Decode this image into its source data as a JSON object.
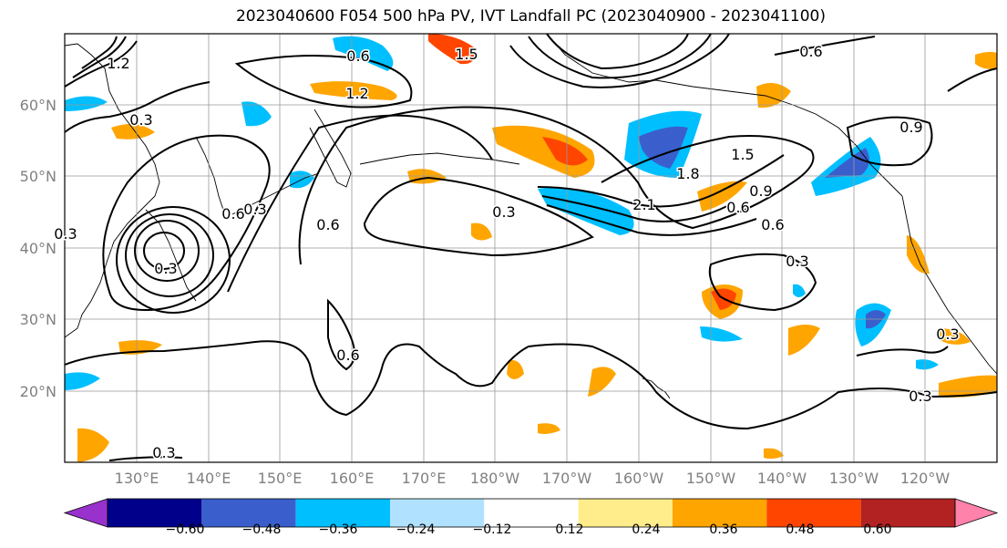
{
  "title": "2023040600 F054 500 hPa PV, IVT Landfall PC (2023040900 - 2023041100)",
  "lat_labels": [
    "60°N",
    "50°N",
    "40°N",
    "30°N",
    "20°N"
  ],
  "lon_labels": [
    "130°E",
    "140°E",
    "150°E",
    "160°E",
    "170°E",
    "180°W",
    "170°W",
    "160°W",
    "150°W",
    "140°W",
    "130°W",
    "120°W"
  ],
  "contour_labels": [
    "0.6",
    "1.5",
    "0.3",
    "0.6",
    "1.2",
    "0.3",
    "0.6",
    "0.3",
    "1.8",
    "1.5",
    "2.1",
    "0.9",
    "0.6",
    "0.6",
    "0.3",
    "0.6",
    "0.3",
    "0.3",
    "0.3",
    "1.2",
    "0.3",
    "0.9",
    "0.3",
    "0.6"
  ],
  "colorbar": {
    "ticks": [
      "−0.60",
      "−0.48",
      "−0.36",
      "−0.24",
      "−0.12",
      "0.12",
      "0.24",
      "0.36",
      "0.48",
      "0.60"
    ],
    "colors": [
      "#9932cc",
      "#00008b",
      "#3a5fcd",
      "#00bfff",
      "#b0e2ff",
      "#ffffff",
      "#ffec8b",
      "#ffa500",
      "#ff4500",
      "#b22222",
      "#ff82ab"
    ]
  }
}
